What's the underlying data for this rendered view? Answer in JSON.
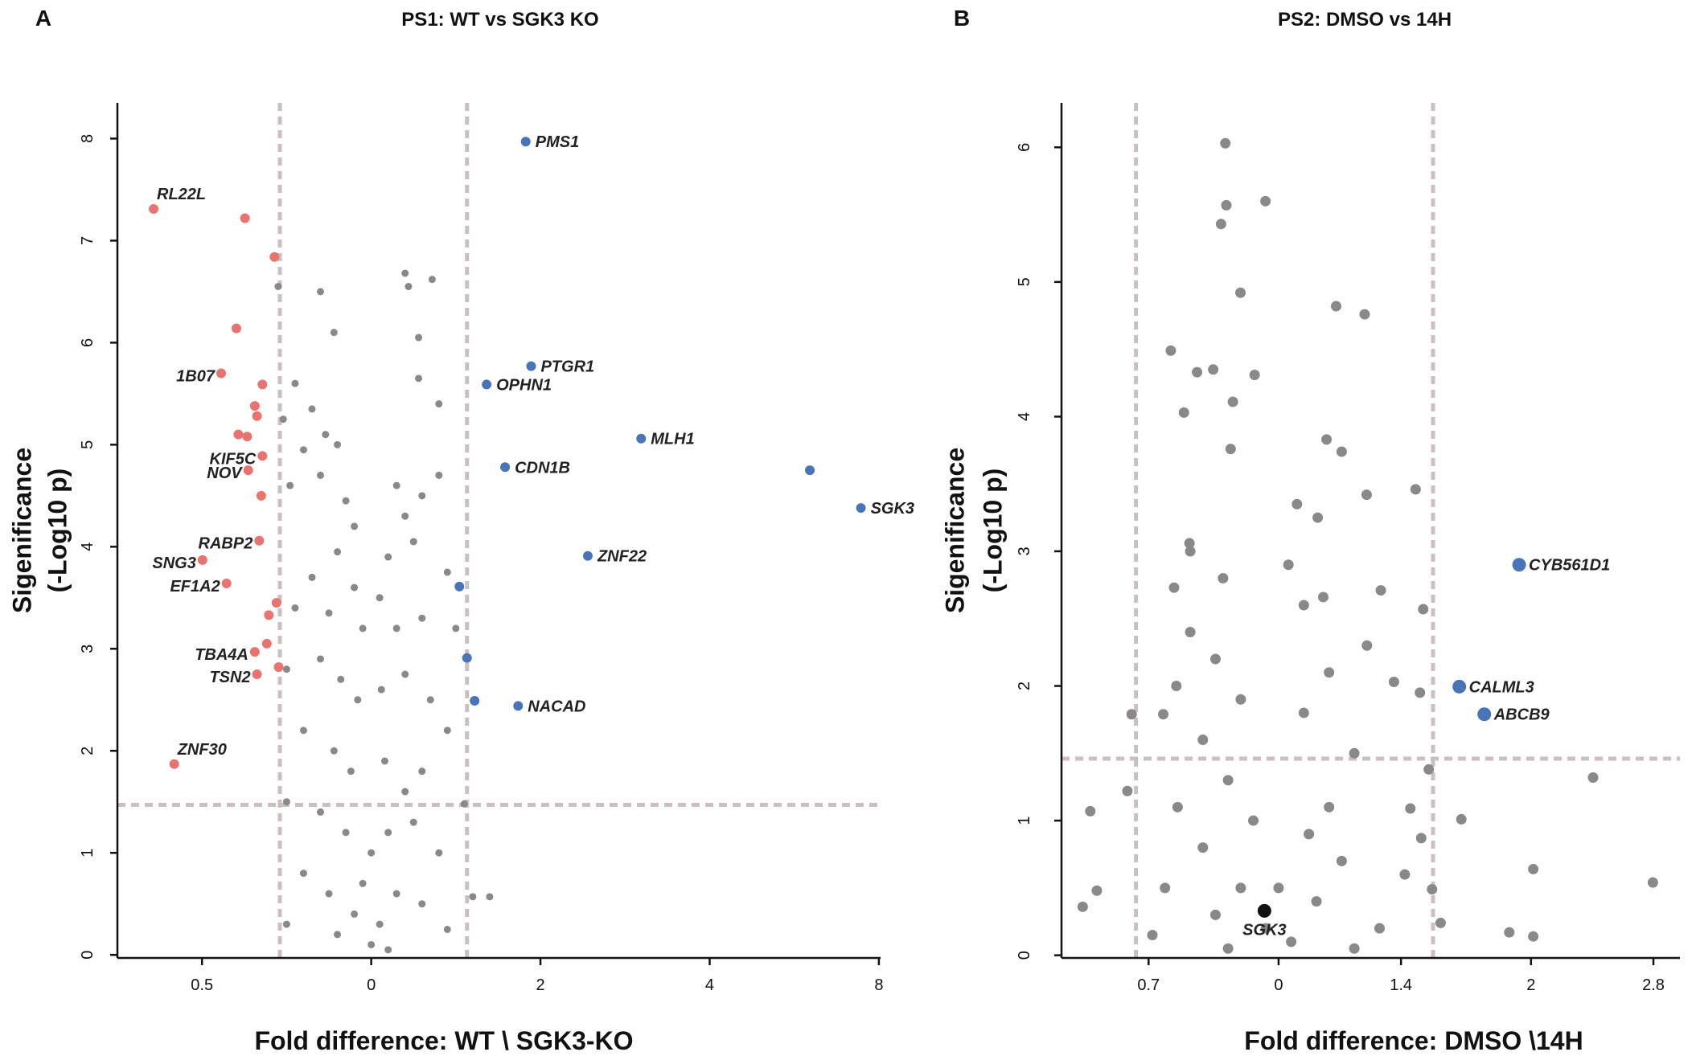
{
  "chart_data": [
    {
      "type": "scatter",
      "panel": "A",
      "title": "PS1: WT vs SGK3 KO",
      "xlabel": "Fold difference: WT \\ SGK3-KO",
      "ylabel": [
        "Sigenificance",
        "(-Log10 p)"
      ],
      "xlim": [
        -1.5,
        3.01
      ],
      "ylim": [
        -0.03,
        8.35
      ],
      "xticks": [
        {
          "value": -1,
          "label": "0.5"
        },
        0,
        {
          "value": 1,
          "label": "2"
        },
        {
          "value": 2,
          "label": "4"
        },
        {
          "value": 3,
          "label": "8"
        }
      ],
      "yticks": [
        0,
        1,
        2,
        3,
        4,
        5,
        6,
        7,
        8
      ],
      "vlines": [
        -0.54,
        0.566
      ],
      "hline": 1.47,
      "line_color": "#cbbfbf",
      "series": [
        {
          "color": "#898989",
          "x": [
            -0.55,
            -0.3,
            -0.22,
            0.2,
            0.22,
            0.36,
            0.28,
            0.28,
            0.4,
            -0.45,
            -0.35,
            -0.52,
            -0.27,
            -0.4,
            -0.2,
            -0.48,
            -0.3,
            -0.15,
            -0.1,
            0.15,
            0.2,
            0.3,
            0.4,
            0.25,
            0.45,
            0.1,
            -0.2,
            -0.35,
            -0.45,
            -0.25,
            -0.1,
            -0.05,
            0.05,
            0.15,
            0.3,
            0.5,
            -0.5,
            -0.3,
            -0.18,
            -0.08,
            0.06,
            0.2,
            0.35,
            0.45,
            -0.4,
            -0.22,
            -0.12,
            0.08,
            0.2,
            0.3,
            -0.5,
            -0.3,
            -0.15,
            0.0,
            0.1,
            0.25,
            0.4,
            -0.4,
            -0.25,
            -0.1,
            0.05,
            0.15,
            0.3,
            -0.2,
            0.0,
            0.1,
            -0.05,
            0.6,
            0.7,
            0.55,
            -0.5,
            0.45
          ],
          "y": [
            6.55,
            6.5,
            6.1,
            6.68,
            6.55,
            6.62,
            6.05,
            5.65,
            5.4,
            5.6,
            5.35,
            5.25,
            5.1,
            4.95,
            5.0,
            4.6,
            4.7,
            4.45,
            4.2,
            4.6,
            4.3,
            4.5,
            4.7,
            4.05,
            3.75,
            3.9,
            3.95,
            3.7,
            3.4,
            3.35,
            3.6,
            3.2,
            3.5,
            3.2,
            3.3,
            3.2,
            2.8,
            2.9,
            2.7,
            2.5,
            2.6,
            2.75,
            2.5,
            2.2,
            2.2,
            2.0,
            1.8,
            1.9,
            1.6,
            1.8,
            1.5,
            1.4,
            1.2,
            1.0,
            1.2,
            1.3,
            1.0,
            0.8,
            0.6,
            0.4,
            0.3,
            0.6,
            0.5,
            0.2,
            0.1,
            0.05,
            0.7,
            0.57,
            0.57,
            1.48,
            0.3,
            0.25
          ]
        },
        {
          "color": "#e8736f",
          "x": [
            -1.286,
            -0.746,
            -0.572,
            -0.797,
            -0.887,
            -0.643,
            -0.688,
            -0.675,
            -0.785,
            -0.733,
            -0.643,
            -0.727,
            -0.65,
            -0.662,
            -0.997,
            -0.855,
            -0.56,
            -0.605,
            -0.617,
            -0.688,
            -0.547,
            -0.675,
            -1.164
          ],
          "y": [
            7.31,
            7.22,
            6.84,
            6.14,
            5.7,
            5.59,
            5.38,
            5.28,
            5.1,
            5.08,
            4.89,
            4.75,
            4.5,
            4.06,
            3.87,
            3.64,
            3.45,
            3.33,
            3.05,
            2.97,
            2.82,
            2.75,
            1.87
          ],
          "labels": [
            "RL22L",
            null,
            null,
            null,
            "1B07",
            null,
            null,
            null,
            null,
            null,
            "KIF5C",
            "NOV",
            null,
            "RABP2",
            "SNG3",
            "EF1A2",
            null,
            null,
            null,
            "TBA4A",
            null,
            "TSN2",
            "ZNF30"
          ]
        },
        {
          "color": "#4a74b8",
          "x": [
            0.913,
            0.945,
            0.682,
            1.595,
            0.791,
            2.592,
            2.894,
            1.28,
            0.521,
            0.566,
            0.611,
            0.868
          ],
          "y": [
            7.97,
            5.77,
            5.59,
            5.06,
            4.78,
            4.75,
            4.38,
            3.91,
            3.61,
            2.91,
            2.49,
            2.44
          ],
          "labels": [
            "PMS1",
            "PTGR1",
            "OPHN1",
            "MLH1",
            "CDN1B",
            null,
            "SGK3",
            "ZNF22",
            null,
            null,
            null,
            "NACAD"
          ]
        }
      ]
    },
    {
      "type": "scatter",
      "panel": "B",
      "title": "PS2: DMSO vs 14H",
      "xlabel": "Fold difference: DMSO \\14H",
      "ylabel": [
        "Sigenificance",
        "(-Log10 p)"
      ],
      "xlim": [
        -0.86,
        1.59
      ],
      "ylim": [
        -0.02,
        6.33
      ],
      "xticks": [
        {
          "value": -0.515,
          "label": "0.7"
        },
        0,
        {
          "value": 0.485,
          "label": "1.4"
        },
        {
          "value": 1,
          "label": "2"
        },
        {
          "value": 1.485,
          "label": "2.8"
        }
      ],
      "yticks": [
        0,
        1,
        2,
        3,
        4,
        5,
        6
      ],
      "vlines": [
        -0.565,
        0.612
      ],
      "hline": 1.46,
      "line_color": "#cbbfbf",
      "series": [
        {
          "color": "#898989",
          "x": [
            -0.211,
            -0.207,
            -0.228,
            -0.052,
            -0.151,
            0.228,
            0.341,
            -0.427,
            -0.259,
            -0.323,
            -0.095,
            -0.181,
            -0.375,
            -0.19,
            0.19,
            0.25,
            0.543,
            0.349,
            0.073,
            0.155,
            -0.353,
            -0.414,
            0.039,
            0.573,
            0.405,
            0.177,
            0.457,
            0.56,
            -0.457,
            -0.405,
            -0.582,
            -0.746,
            -0.599,
            0.595,
            1.483,
            1.246,
            1.009,
            0.724,
            0.522,
            0.565,
            -0.776,
            -0.72,
            0.608,
            0.642,
            0.914,
            1.009,
            -0.35,
            -0.25,
            -0.15,
            -0.3,
            -0.2,
            -0.1,
            -0.4,
            -0.3,
            -0.15,
            -0.05,
            -0.25,
            -0.45,
            -0.2,
            0.05,
            0.15,
            0.25,
            0.2,
            0.3,
            0.1,
            0.2,
            0.35,
            0.12,
            0.4,
            0.5,
            0.3,
            -0.5,
            -0.35,
            0.1,
            -0.22,
            0.0
          ],
          "y": [
            6.03,
            5.57,
            5.43,
            5.6,
            4.92,
            4.82,
            4.76,
            4.49,
            4.35,
            4.33,
            4.31,
            4.11,
            4.03,
            3.76,
            3.83,
            3.74,
            3.46,
            3.42,
            3.35,
            3.25,
            3.06,
            2.73,
            2.9,
            2.57,
            2.71,
            2.66,
            2.03,
            1.95,
            1.79,
            2.0,
            1.79,
            1.07,
            1.22,
            1.38,
            0.54,
            1.32,
            0.64,
            1.01,
            1.09,
            0.87,
            0.36,
            0.48,
            0.49,
            0.24,
            0.17,
            0.14,
            2.4,
            2.2,
            1.9,
            1.6,
            1.3,
            1.0,
            1.1,
            0.8,
            0.5,
            0.2,
            0.3,
            0.5,
            0.05,
            0.1,
            0.4,
            0.7,
            1.1,
            1.5,
            1.8,
            2.1,
            2.3,
            0.9,
            0.2,
            0.6,
            0.05,
            0.15,
            3.0,
            2.6,
            2.8,
            0.5
          ]
        },
        {
          "color": "#4a74b8",
          "x": [
            0.953,
            0.716,
            0.815
          ],
          "y": [
            2.9,
            1.995,
            1.79
          ],
          "labels": [
            "CYB561D1",
            "CALML3",
            "ABCB9"
          ]
        },
        {
          "color": "#111111",
          "x": [
            -0.056
          ],
          "y": [
            0.33
          ],
          "labels": [
            "SGK3"
          ]
        }
      ]
    }
  ]
}
